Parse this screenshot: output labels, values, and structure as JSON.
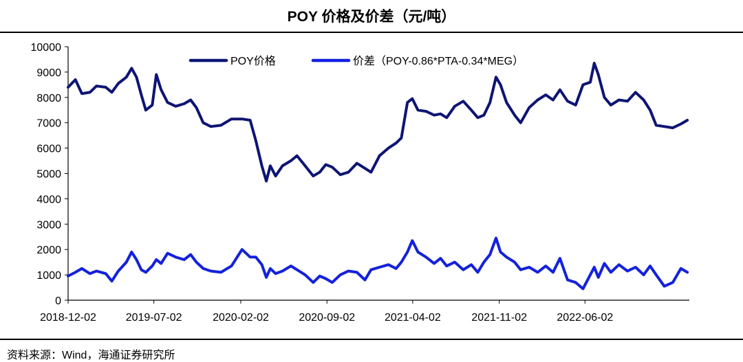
{
  "title": "POY 价格及价差（元/吨）",
  "source": "资料来源：Wind，海通证券研究所",
  "chart_data": {
    "type": "line",
    "title": "POY 价格及价差（元/吨）",
    "ylim": [
      0,
      10000
    ],
    "yticks": [
      0,
      1000,
      2000,
      3000,
      4000,
      5000,
      6000,
      7000,
      8000,
      9000,
      10000
    ],
    "xlim": [
      "2018-12-02",
      "2023-02-15"
    ],
    "xticks": [
      "2018-12-02",
      "2019-07-02",
      "2020-02-02",
      "2020-09-02",
      "2021-04-02",
      "2021-11-02",
      "2022-06-02"
    ],
    "legend_position": "top-center",
    "series": [
      {
        "name": "POY价格",
        "color": "#0b137f",
        "points": [
          [
            "2018-12-02",
            8400
          ],
          [
            "2018-12-20",
            8700
          ],
          [
            "2019-01-05",
            8150
          ],
          [
            "2019-01-25",
            8200
          ],
          [
            "2019-02-10",
            8450
          ],
          [
            "2019-03-05",
            8400
          ],
          [
            "2019-03-20",
            8200
          ],
          [
            "2019-04-05",
            8550
          ],
          [
            "2019-04-25",
            8800
          ],
          [
            "2019-05-08",
            9150
          ],
          [
            "2019-05-20",
            8800
          ],
          [
            "2019-06-01",
            8100
          ],
          [
            "2019-06-12",
            7500
          ],
          [
            "2019-06-28",
            7700
          ],
          [
            "2019-07-08",
            8900
          ],
          [
            "2019-07-20",
            8300
          ],
          [
            "2019-08-05",
            7800
          ],
          [
            "2019-08-25",
            7650
          ],
          [
            "2019-09-15",
            7750
          ],
          [
            "2019-10-01",
            7900
          ],
          [
            "2019-10-15",
            7600
          ],
          [
            "2019-11-01",
            7000
          ],
          [
            "2019-11-20",
            6850
          ],
          [
            "2019-12-15",
            6900
          ],
          [
            "2020-01-10",
            7150
          ],
          [
            "2020-02-05",
            7150
          ],
          [
            "2020-02-25",
            7100
          ],
          [
            "2020-03-10",
            6300
          ],
          [
            "2020-03-25",
            5300
          ],
          [
            "2020-04-05",
            4700
          ],
          [
            "2020-04-15",
            5300
          ],
          [
            "2020-04-28",
            4900
          ],
          [
            "2020-05-15",
            5300
          ],
          [
            "2020-06-05",
            5500
          ],
          [
            "2020-06-20",
            5700
          ],
          [
            "2020-07-10",
            5300
          ],
          [
            "2020-07-30",
            4900
          ],
          [
            "2020-08-15",
            5050
          ],
          [
            "2020-08-30",
            5350
          ],
          [
            "2020-09-15",
            5250
          ],
          [
            "2020-10-05",
            4950
          ],
          [
            "2020-10-25",
            5050
          ],
          [
            "2020-11-15",
            5400
          ],
          [
            "2020-12-05",
            5200
          ],
          [
            "2020-12-20",
            5050
          ],
          [
            "2021-01-10",
            5700
          ],
          [
            "2021-02-01",
            6000
          ],
          [
            "2021-02-20",
            6200
          ],
          [
            "2021-03-05",
            6400
          ],
          [
            "2021-03-20",
            7800
          ],
          [
            "2021-04-01",
            7950
          ],
          [
            "2021-04-15",
            7500
          ],
          [
            "2021-05-05",
            7450
          ],
          [
            "2021-05-25",
            7300
          ],
          [
            "2021-06-10",
            7350
          ],
          [
            "2021-06-25",
            7200
          ],
          [
            "2021-07-15",
            7650
          ],
          [
            "2021-08-05",
            7850
          ],
          [
            "2021-08-25",
            7500
          ],
          [
            "2021-09-10",
            7200
          ],
          [
            "2021-09-25",
            7300
          ],
          [
            "2021-10-10",
            7800
          ],
          [
            "2021-10-25",
            8800
          ],
          [
            "2021-11-05",
            8500
          ],
          [
            "2021-11-20",
            7800
          ],
          [
            "2021-12-10",
            7300
          ],
          [
            "2021-12-25",
            7000
          ],
          [
            "2022-01-15",
            7600
          ],
          [
            "2022-02-05",
            7900
          ],
          [
            "2022-02-25",
            8100
          ],
          [
            "2022-03-15",
            7900
          ],
          [
            "2022-04-01",
            8300
          ],
          [
            "2022-04-20",
            7850
          ],
          [
            "2022-05-10",
            7700
          ],
          [
            "2022-05-28",
            8500
          ],
          [
            "2022-06-15",
            8600
          ],
          [
            "2022-06-25",
            9350
          ],
          [
            "2022-07-05",
            8900
          ],
          [
            "2022-07-20",
            8000
          ],
          [
            "2022-08-05",
            7700
          ],
          [
            "2022-08-25",
            7900
          ],
          [
            "2022-09-15",
            7850
          ],
          [
            "2022-10-05",
            8200
          ],
          [
            "2022-10-25",
            7900
          ],
          [
            "2022-11-10",
            7500
          ],
          [
            "2022-11-25",
            6900
          ],
          [
            "2022-12-15",
            6850
          ],
          [
            "2023-01-05",
            6800
          ],
          [
            "2023-01-25",
            6950
          ],
          [
            "2023-02-10",
            7100
          ]
        ]
      },
      {
        "name": "价差（POY-0.86*PTA-0.34*MEG）",
        "color": "#0e1ef5",
        "points": [
          [
            "2018-12-02",
            950
          ],
          [
            "2018-12-20",
            1100
          ],
          [
            "2019-01-05",
            1250
          ],
          [
            "2019-01-25",
            1050
          ],
          [
            "2019-02-10",
            1150
          ],
          [
            "2019-03-05",
            1050
          ],
          [
            "2019-03-20",
            750
          ],
          [
            "2019-04-05",
            1150
          ],
          [
            "2019-04-25",
            1500
          ],
          [
            "2019-05-08",
            1900
          ],
          [
            "2019-05-20",
            1600
          ],
          [
            "2019-06-01",
            1200
          ],
          [
            "2019-06-12",
            1100
          ],
          [
            "2019-06-28",
            1350
          ],
          [
            "2019-07-08",
            1600
          ],
          [
            "2019-07-20",
            1450
          ],
          [
            "2019-08-05",
            1850
          ],
          [
            "2019-08-25",
            1700
          ],
          [
            "2019-09-15",
            1600
          ],
          [
            "2019-10-01",
            1800
          ],
          [
            "2019-10-15",
            1500
          ],
          [
            "2019-11-01",
            1250
          ],
          [
            "2019-11-20",
            1150
          ],
          [
            "2019-12-15",
            1100
          ],
          [
            "2020-01-10",
            1350
          ],
          [
            "2020-02-05",
            2000
          ],
          [
            "2020-02-25",
            1700
          ],
          [
            "2020-03-10",
            1700
          ],
          [
            "2020-03-25",
            1400
          ],
          [
            "2020-04-05",
            900
          ],
          [
            "2020-04-15",
            1250
          ],
          [
            "2020-04-28",
            1050
          ],
          [
            "2020-05-15",
            1150
          ],
          [
            "2020-06-05",
            1350
          ],
          [
            "2020-06-20",
            1200
          ],
          [
            "2020-07-10",
            1000
          ],
          [
            "2020-07-30",
            700
          ],
          [
            "2020-08-15",
            950
          ],
          [
            "2020-08-30",
            850
          ],
          [
            "2020-09-15",
            700
          ],
          [
            "2020-10-05",
            1000
          ],
          [
            "2020-10-25",
            1150
          ],
          [
            "2020-11-15",
            1100
          ],
          [
            "2020-12-05",
            800
          ],
          [
            "2020-12-20",
            1200
          ],
          [
            "2021-01-10",
            1300
          ],
          [
            "2021-02-01",
            1400
          ],
          [
            "2021-02-20",
            1250
          ],
          [
            "2021-03-05",
            1500
          ],
          [
            "2021-03-20",
            1900
          ],
          [
            "2021-04-01",
            2350
          ],
          [
            "2021-04-15",
            1900
          ],
          [
            "2021-05-05",
            1700
          ],
          [
            "2021-05-25",
            1450
          ],
          [
            "2021-06-10",
            1650
          ],
          [
            "2021-06-25",
            1350
          ],
          [
            "2021-07-15",
            1500
          ],
          [
            "2021-08-05",
            1200
          ],
          [
            "2021-08-25",
            1400
          ],
          [
            "2021-09-10",
            1100
          ],
          [
            "2021-09-25",
            1500
          ],
          [
            "2021-10-10",
            1800
          ],
          [
            "2021-10-25",
            2450
          ],
          [
            "2021-11-05",
            1900
          ],
          [
            "2021-11-20",
            1700
          ],
          [
            "2021-12-10",
            1500
          ],
          [
            "2021-12-25",
            1200
          ],
          [
            "2022-01-15",
            1300
          ],
          [
            "2022-02-05",
            1100
          ],
          [
            "2022-02-25",
            1350
          ],
          [
            "2022-03-15",
            1100
          ],
          [
            "2022-04-01",
            1650
          ],
          [
            "2022-04-20",
            800
          ],
          [
            "2022-05-10",
            700
          ],
          [
            "2022-05-28",
            450
          ],
          [
            "2022-06-15",
            1000
          ],
          [
            "2022-06-25",
            1300
          ],
          [
            "2022-07-05",
            900
          ],
          [
            "2022-07-20",
            1450
          ],
          [
            "2022-08-05",
            1100
          ],
          [
            "2022-08-25",
            1400
          ],
          [
            "2022-09-15",
            1150
          ],
          [
            "2022-10-05",
            1300
          ],
          [
            "2022-10-25",
            1000
          ],
          [
            "2022-11-10",
            1350
          ],
          [
            "2022-11-25",
            1000
          ],
          [
            "2022-12-15",
            550
          ],
          [
            "2023-01-05",
            700
          ],
          [
            "2023-01-25",
            1250
          ],
          [
            "2023-02-10",
            1100
          ]
        ]
      }
    ]
  }
}
